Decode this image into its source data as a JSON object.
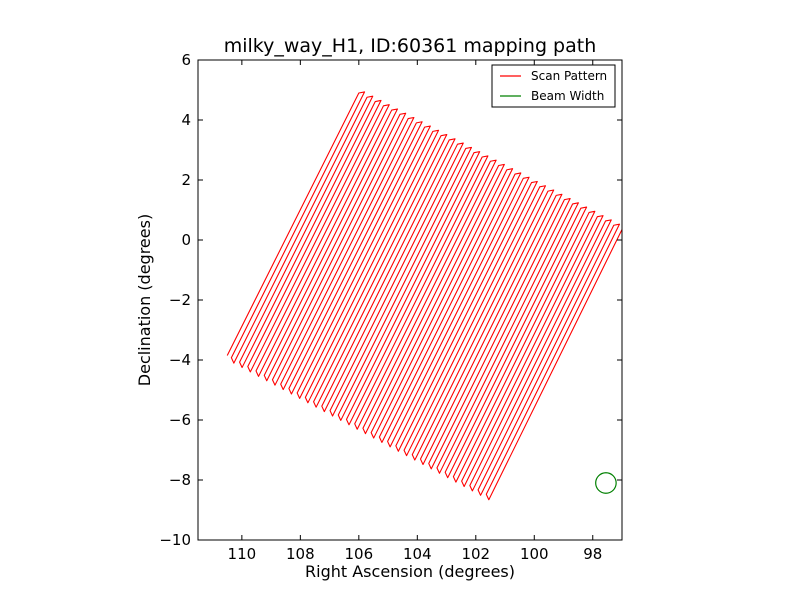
{
  "chart_data": {
    "type": "line",
    "title": "milky_way_H1, ID:60361 mapping path",
    "xlabel": "Right Ascension (degrees)",
    "ylabel": "Declination (degrees)",
    "xlim": [
      111.5,
      97.0
    ],
    "ylim": [
      -10,
      6
    ],
    "x_ticks": [
      110,
      108,
      106,
      104,
      102,
      100,
      98
    ],
    "x_tick_labels": [
      "110",
      "108",
      "106",
      "104",
      "102",
      "100",
      "98"
    ],
    "y_ticks": [
      6,
      4,
      2,
      0,
      -2,
      -4,
      -6,
      -8,
      -10
    ],
    "y_tick_labels": [
      "6",
      "4",
      "2",
      "0",
      "−2",
      "−4",
      "−6",
      "−8",
      "−10"
    ],
    "grid": false,
    "legend": {
      "position": "upper-right",
      "entries": [
        {
          "label": "Scan Pattern",
          "color": "#ff0000"
        },
        {
          "label": "Beam Width",
          "color": "#008000"
        }
      ]
    },
    "series": [
      {
        "name": "Scan Pattern",
        "color": "#ff0000",
        "pattern": "boustrophedon raster scan",
        "num_legs": 65,
        "start": {
          "x": 110.5,
          "y": -3.85
        },
        "corners": {
          "top_left": {
            "x": 106.0,
            "y": 4.9
          },
          "bottom_left": {
            "x": 110.5,
            "y": -3.85
          },
          "bottom_right": {
            "x": 101.5,
            "y": -8.55
          },
          "top_right": {
            "x": 97.0,
            "y": 0.35
          }
        },
        "turnaround_depth_deg": 0.12
      },
      {
        "name": "Beam Width",
        "color": "#008000",
        "shape": "circle",
        "center": {
          "x": 97.55,
          "y": -8.1
        },
        "radius_deg": 0.35
      }
    ]
  }
}
